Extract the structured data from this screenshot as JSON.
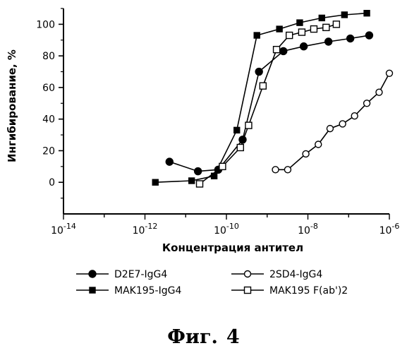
{
  "chart_data": {
    "type": "line",
    "xlabel": "Концентрация антител",
    "ylabel": "Ингибирование, %",
    "x_scale": "log",
    "xlim": [
      1e-14,
      1e-06
    ],
    "ylim": [
      -20,
      110
    ],
    "x_ticks": [
      {
        "value": 1e-14,
        "label": "10^-14",
        "base": "10",
        "exp": "-14"
      },
      {
        "value": 1e-12,
        "label": "10^-12",
        "base": "10",
        "exp": "-12"
      },
      {
        "value": 1e-10,
        "label": "10^-10",
        "base": "10",
        "exp": "-10"
      },
      {
        "value": 1e-08,
        "label": "10^-8",
        "base": "10",
        "exp": "-8"
      },
      {
        "value": 1e-06,
        "label": "10^-6",
        "base": "10",
        "exp": "-6"
      }
    ],
    "y_ticks": [
      0,
      20,
      40,
      60,
      80,
      100
    ],
    "y_tick_labels": [
      "0",
      "20",
      "40",
      "60",
      "80",
      "100"
    ],
    "grid": false,
    "legend_position": "bottom",
    "series": [
      {
        "name": "D2E7-IgG4",
        "marker": "filled-circle",
        "x": [
          4e-12,
          2e-11,
          6.3e-11,
          2.5e-10,
          6.3e-10,
          2.5e-09,
          7.9e-09,
          3.2e-08,
          1.1e-07,
          3.2e-07
        ],
        "y": [
          13,
          7,
          8,
          27,
          70,
          83,
          86,
          89,
          91,
          93
        ]
      },
      {
        "name": "MAK195-IgG4",
        "marker": "filled-square",
        "x": [
          1.8e-12,
          1.4e-11,
          5e-11,
          1.8e-10,
          5.6e-10,
          2e-09,
          6.3e-09,
          2.2e-08,
          7.9e-08,
          2.8e-07
        ],
        "y": [
          0,
          1,
          4,
          33,
          93,
          97,
          101,
          104,
          106,
          107
        ]
      },
      {
        "name": "2SD4-IgG4",
        "marker": "open-circle",
        "x": [
          1.6e-09,
          3.2e-09,
          8.9e-09,
          1.8e-08,
          3.5e-08,
          7.1e-08,
          1.4e-07,
          2.8e-07,
          5.6e-07,
          1e-06
        ],
        "y": [
          8,
          8,
          18,
          24,
          34,
          37,
          42,
          50,
          57,
          69
        ]
      },
      {
        "name": "MAK195 F(ab')2",
        "marker": "open-square",
        "x": [
          2.2e-11,
          8e-11,
          2.2e-10,
          3.5e-10,
          7.9e-10,
          1.7e-09,
          3.5e-09,
          7.1e-09,
          1.4e-08,
          2.8e-08,
          5e-08
        ],
        "y": [
          -1,
          10,
          22,
          36,
          61,
          84,
          93,
          95,
          97,
          98,
          100
        ]
      }
    ]
  },
  "caption": {
    "prefix": "Фиг.",
    "number": "4"
  }
}
